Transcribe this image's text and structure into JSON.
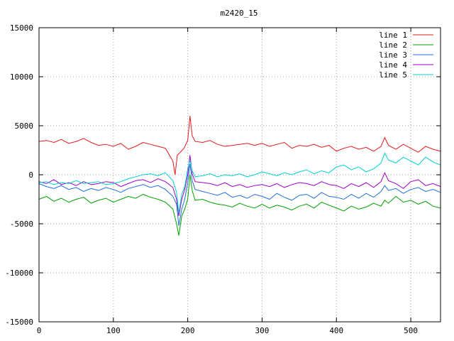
{
  "chart_data": {
    "type": "line",
    "title": "m2420_15",
    "xlabel": "",
    "ylabel": "",
    "xlim": [
      0,
      540
    ],
    "ylim": [
      -15000,
      15000
    ],
    "x_ticks": [
      0,
      100,
      200,
      300,
      400,
      500
    ],
    "y_ticks": [
      -15000,
      -10000,
      -5000,
      0,
      5000,
      10000,
      15000
    ],
    "grid": true,
    "legend_position": "top-right",
    "series": [
      {
        "name": "line 1",
        "color": "#e41a1c",
        "x": [
          0,
          10,
          20,
          30,
          40,
          50,
          60,
          70,
          80,
          90,
          100,
          110,
          120,
          130,
          140,
          150,
          160,
          170,
          180,
          183,
          186,
          190,
          195,
          200,
          203,
          206,
          210,
          220,
          230,
          240,
          250,
          260,
          270,
          280,
          290,
          300,
          310,
          320,
          330,
          340,
          350,
          360,
          370,
          380,
          390,
          400,
          410,
          420,
          430,
          440,
          450,
          460,
          465,
          470,
          480,
          490,
          500,
          510,
          520,
          530,
          540
        ],
        "y": [
          3400,
          3500,
          3300,
          3600,
          3200,
          3400,
          3700,
          3300,
          3000,
          3100,
          2900,
          3200,
          2600,
          2900,
          3300,
          3100,
          2900,
          2700,
          1400,
          0,
          2000,
          2300,
          2700,
          3500,
          6000,
          4000,
          3400,
          3300,
          3500,
          3100,
          2900,
          3000,
          3100,
          3200,
          3000,
          3200,
          2900,
          3100,
          3300,
          2700,
          3000,
          2900,
          3100,
          2800,
          3000,
          2400,
          2700,
          2900,
          2600,
          2800,
          2400,
          2900,
          3800,
          3000,
          2600,
          3100,
          2700,
          2300,
          2900,
          2600,
          2400
        ]
      },
      {
        "name": "line 2",
        "color": "#00a000",
        "x": [
          0,
          10,
          20,
          30,
          40,
          50,
          60,
          70,
          80,
          90,
          100,
          110,
          120,
          130,
          140,
          150,
          160,
          170,
          180,
          185,
          188,
          192,
          196,
          200,
          203,
          206,
          210,
          220,
          230,
          240,
          250,
          260,
          270,
          280,
          290,
          300,
          310,
          320,
          330,
          340,
          350,
          360,
          370,
          380,
          390,
          400,
          410,
          420,
          430,
          440,
          450,
          460,
          465,
          470,
          480,
          490,
          500,
          510,
          520,
          530,
          540
        ],
        "y": [
          -2500,
          -2200,
          -2700,
          -2400,
          -2800,
          -2500,
          -2300,
          -2900,
          -2600,
          -2400,
          -2800,
          -2500,
          -2200,
          -2400,
          -2000,
          -2300,
          -2500,
          -2800,
          -3500,
          -5000,
          -6200,
          -4200,
          -3500,
          -2500,
          0,
          -1600,
          -2600,
          -2500,
          -2800,
          -3000,
          -3100,
          -3300,
          -2900,
          -3200,
          -3400,
          -3000,
          -3400,
          -3100,
          -3300,
          -3600,
          -3200,
          -3000,
          -3400,
          -2800,
          -3100,
          -3400,
          -3700,
          -3200,
          -3500,
          -3300,
          -2900,
          -3200,
          -2600,
          -2900,
          -2200,
          -2800,
          -2600,
          -3000,
          -2700,
          -3200,
          -3400
        ]
      },
      {
        "name": "line 3",
        "color": "#1f6fd6",
        "x": [
          0,
          10,
          20,
          30,
          40,
          50,
          60,
          70,
          80,
          90,
          100,
          110,
          120,
          130,
          140,
          150,
          160,
          170,
          180,
          185,
          188,
          192,
          196,
          200,
          203,
          206,
          210,
          220,
          230,
          240,
          250,
          260,
          270,
          280,
          290,
          300,
          310,
          320,
          330,
          340,
          350,
          360,
          370,
          380,
          390,
          400,
          410,
          420,
          430,
          440,
          450,
          460,
          465,
          470,
          480,
          490,
          500,
          510,
          520,
          530,
          540
        ],
        "y": [
          -900,
          -1200,
          -1400,
          -1100,
          -1500,
          -1300,
          -1700,
          -1400,
          -1600,
          -1300,
          -1500,
          -1800,
          -1400,
          -1200,
          -1000,
          -1300,
          -1100,
          -1500,
          -2200,
          -3000,
          -5200,
          -3500,
          -2500,
          -800,
          1100,
          -600,
          -1500,
          -1700,
          -1900,
          -2100,
          -1800,
          -2300,
          -2100,
          -2400,
          -2000,
          -2200,
          -2500,
          -1900,
          -2300,
          -2600,
          -2100,
          -2000,
          -2400,
          -1800,
          -2200,
          -2300,
          -2500,
          -2000,
          -2400,
          -1900,
          -2300,
          -1700,
          -1100,
          -1600,
          -1400,
          -1900,
          -1500,
          -1300,
          -1700,
          -1500,
          -1800
        ]
      },
      {
        "name": "line 4",
        "color": "#a000c8",
        "x": [
          0,
          10,
          20,
          30,
          40,
          50,
          60,
          70,
          80,
          90,
          100,
          110,
          120,
          130,
          140,
          150,
          160,
          170,
          180,
          185,
          188,
          192,
          196,
          200,
          203,
          206,
          210,
          220,
          230,
          240,
          250,
          260,
          270,
          280,
          290,
          300,
          310,
          320,
          330,
          340,
          350,
          360,
          370,
          380,
          390,
          400,
          410,
          420,
          430,
          440,
          450,
          460,
          465,
          470,
          480,
          490,
          500,
          510,
          520,
          530,
          540
        ],
        "y": [
          -700,
          -900,
          -500,
          -1000,
          -800,
          -1100,
          -700,
          -1000,
          -900,
          -700,
          -800,
          -1200,
          -900,
          -600,
          -500,
          -800,
          -400,
          -700,
          -1300,
          -2500,
          -4200,
          -2500,
          -1500,
          0,
          2000,
          100,
          -700,
          -800,
          -900,
          -1100,
          -800,
          -1200,
          -1000,
          -1300,
          -1100,
          -1000,
          -1200,
          -900,
          -1300,
          -1000,
          -800,
          -900,
          -1100,
          -700,
          -1000,
          -1100,
          -1400,
          -900,
          -1200,
          -800,
          -1300,
          -700,
          200,
          -600,
          -900,
          -1400,
          -700,
          -500,
          -1100,
          -900,
          -1200
        ]
      },
      {
        "name": "line 5",
        "color": "#00d0d0",
        "x": [
          0,
          10,
          20,
          30,
          40,
          50,
          60,
          70,
          80,
          90,
          100,
          110,
          120,
          130,
          140,
          150,
          160,
          170,
          180,
          185,
          188,
          192,
          196,
          200,
          203,
          206,
          210,
          220,
          230,
          240,
          250,
          260,
          270,
          280,
          290,
          300,
          310,
          320,
          330,
          340,
          350,
          360,
          370,
          380,
          390,
          400,
          410,
          420,
          430,
          440,
          450,
          460,
          465,
          470,
          480,
          490,
          500,
          510,
          520,
          530,
          540
        ],
        "y": [
          -800,
          -700,
          -1000,
          -800,
          -900,
          -600,
          -900,
          -800,
          -700,
          -1000,
          -900,
          -700,
          -400,
          -200,
          0,
          100,
          -100,
          200,
          -600,
          -1800,
          -3900,
          -2000,
          -1200,
          600,
          1500,
          400,
          -200,
          -100,
          100,
          -200,
          0,
          -100,
          100,
          -200,
          0,
          300,
          100,
          -100,
          200,
          0,
          300,
          500,
          100,
          400,
          200,
          800,
          1000,
          500,
          800,
          300,
          600,
          1200,
          2200,
          1500,
          1200,
          1800,
          1400,
          1000,
          1800,
          1300,
          1000
        ]
      }
    ]
  }
}
